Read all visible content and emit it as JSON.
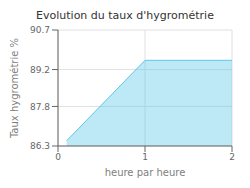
{
  "chart_data": {
    "type": "area",
    "title": "Evolution du taux d'hygrométrie",
    "xlabel": "heure par heure",
    "ylabel": "Taux hygrométrie %",
    "x": [
      0.1,
      1.0,
      2.0
    ],
    "values": [
      86.5,
      89.55,
      89.55
    ],
    "xlim": [
      0,
      2
    ],
    "ylim": [
      86.3,
      90.7
    ],
    "xticks": [
      0,
      1,
      2
    ],
    "yticks": [
      86.3,
      87.8,
      89.2,
      90.7
    ],
    "grid": true,
    "color": "#5bc8e8"
  }
}
